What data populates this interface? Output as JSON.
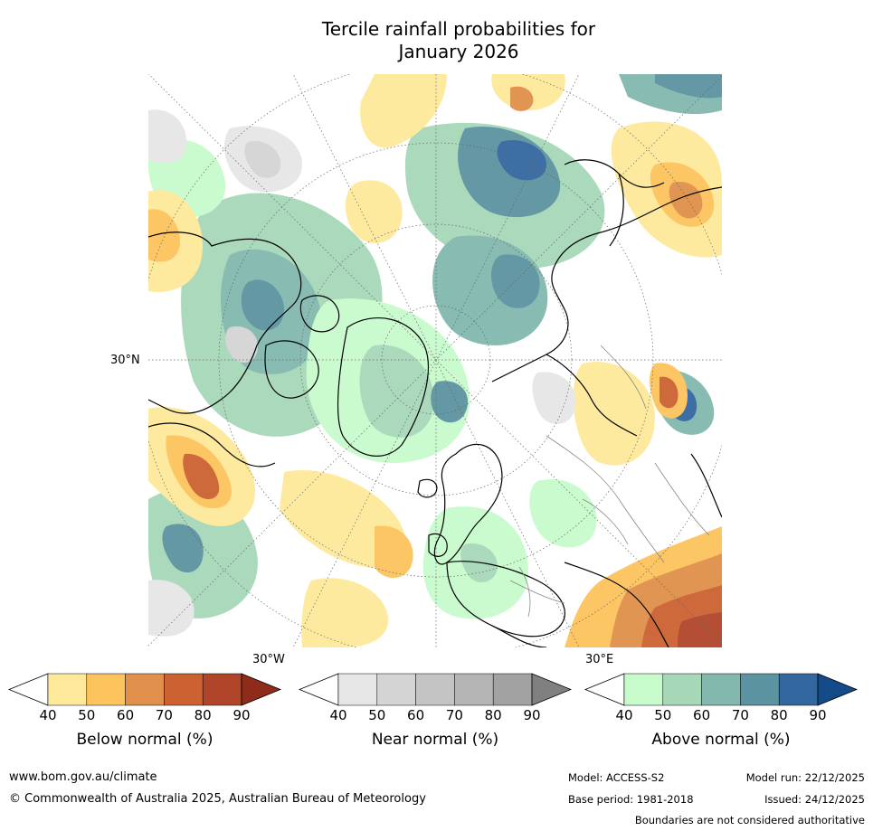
{
  "title": "Tercile rainfall probabilities for\nJanuary 2026",
  "map": {
    "lat_label": "30°N",
    "lon_labels": [
      "30°W",
      "30°E"
    ]
  },
  "legends": [
    {
      "label": "Below normal (%)",
      "ticks": [
        "40",
        "50",
        "60",
        "70",
        "80",
        "90"
      ],
      "colors": [
        "#ffffff",
        "#fee99a",
        "#fdc35d",
        "#e0904a",
        "#cc6231",
        "#b0452a",
        "#8e2b1b"
      ]
    },
    {
      "label": "Near normal (%)",
      "ticks": [
        "40",
        "50",
        "60",
        "70",
        "80",
        "90"
      ],
      "colors": [
        "#ffffff",
        "#e6e6e6",
        "#d4d4d4",
        "#c4c4c4",
        "#b4b4b4",
        "#a2a2a2",
        "#808080"
      ]
    },
    {
      "label": "Above normal (%)",
      "ticks": [
        "40",
        "50",
        "60",
        "70",
        "80",
        "90"
      ],
      "colors": [
        "#ffffff",
        "#c8fbcc",
        "#a6d8b8",
        "#82b8ad",
        "#5b93a0",
        "#3367a0",
        "#124b87"
      ]
    }
  ],
  "footer": {
    "website": "www.bom.gov.au/climate",
    "copyright": "© Commonwealth of Australia 2025, Australian Bureau of Meteorology",
    "model": "Model: ACCESS-S2",
    "model_run": "Model run: 22/12/2025",
    "base_period": "Base period: 1981-2018",
    "issued": "Issued: 24/12/2025",
    "disclaimer": "Boundaries are not considered authoritative"
  }
}
